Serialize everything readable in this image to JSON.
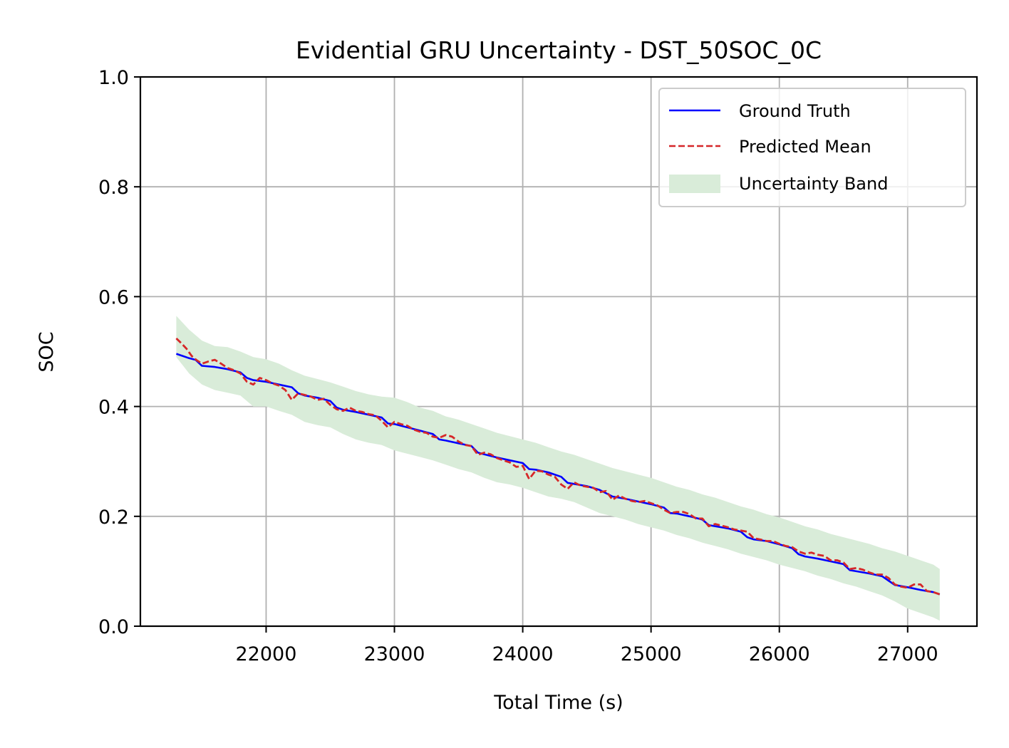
{
  "chart_data": {
    "type": "line",
    "title": "Evidential GRU Uncertainty - DST_50SOC_0C",
    "xlabel": "Total Time (s)",
    "ylabel": "SOC",
    "xlim": [
      21020,
      27540
    ],
    "ylim": [
      0.0,
      1.0
    ],
    "xticks": [
      22000,
      23000,
      24000,
      25000,
      26000,
      27000
    ],
    "yticks": [
      0.0,
      0.2,
      0.4,
      0.6,
      0.8,
      1.0
    ],
    "xtick_labels": [
      "22000",
      "23000",
      "24000",
      "25000",
      "26000",
      "27000"
    ],
    "ytick_labels": [
      "0.0",
      "0.2",
      "0.4",
      "0.6",
      "0.8",
      "1.0"
    ],
    "grid": true,
    "legend_position": "top-right",
    "colors": {
      "ground_truth": "#0000ff",
      "predicted_mean": "#d62728",
      "uncertainty_band": "#d9ecd9",
      "grid": "#b0b0b0"
    },
    "series": [
      {
        "name": "Ground Truth",
        "style": "solid",
        "x": [
          21300,
          21400,
          21450,
          21500,
          21600,
          21700,
          21800,
          21850,
          21900,
          22000,
          22100,
          22200,
          22250,
          22300,
          22400,
          22500,
          22550,
          22600,
          22700,
          22800,
          22900,
          22950,
          23000,
          23100,
          23200,
          23300,
          23350,
          23400,
          23500,
          23600,
          23650,
          23700,
          23800,
          23900,
          24000,
          24050,
          24100,
          24200,
          24300,
          24350,
          24400,
          24500,
          24600,
          24650,
          24700,
          24800,
          24900,
          25000,
          25100,
          25150,
          25200,
          25300,
          25400,
          25450,
          25500,
          25600,
          25700,
          25750,
          25800,
          25900,
          26000,
          26100,
          26150,
          26200,
          26300,
          26400,
          26500,
          26550,
          26600,
          26700,
          26800,
          26850,
          26900,
          27000,
          27100,
          27200,
          27250
        ],
        "y": [
          0.496,
          0.488,
          0.485,
          0.474,
          0.472,
          0.468,
          0.462,
          0.452,
          0.448,
          0.445,
          0.44,
          0.435,
          0.424,
          0.42,
          0.416,
          0.41,
          0.398,
          0.394,
          0.39,
          0.385,
          0.38,
          0.369,
          0.368,
          0.362,
          0.356,
          0.35,
          0.34,
          0.338,
          0.333,
          0.328,
          0.316,
          0.313,
          0.307,
          0.302,
          0.297,
          0.286,
          0.285,
          0.28,
          0.272,
          0.261,
          0.259,
          0.255,
          0.248,
          0.242,
          0.236,
          0.232,
          0.227,
          0.222,
          0.216,
          0.206,
          0.205,
          0.2,
          0.194,
          0.184,
          0.182,
          0.178,
          0.172,
          0.162,
          0.158,
          0.155,
          0.149,
          0.142,
          0.131,
          0.127,
          0.123,
          0.118,
          0.113,
          0.102,
          0.1,
          0.096,
          0.091,
          0.083,
          0.075,
          0.071,
          0.066,
          0.062,
          0.058
        ]
      },
      {
        "name": "Predicted Mean",
        "style": "dashed",
        "x": [
          21300,
          21340,
          21380,
          21420,
          21460,
          21500,
          21550,
          21600,
          21650,
          21700,
          21750,
          21800,
          21850,
          21900,
          21950,
          22000,
          22050,
          22100,
          22150,
          22200,
          22250,
          22300,
          22350,
          22400,
          22450,
          22500,
          22550,
          22600,
          22650,
          22700,
          22750,
          22800,
          22850,
          22900,
          22950,
          23000,
          23050,
          23100,
          23150,
          23200,
          23250,
          23300,
          23350,
          23400,
          23450,
          23500,
          23550,
          23600,
          23650,
          23700,
          23750,
          23800,
          23850,
          23900,
          23950,
          24000,
          24050,
          24100,
          24150,
          24200,
          24250,
          24300,
          24350,
          24400,
          24450,
          24500,
          24550,
          24600,
          24650,
          24700,
          24750,
          24800,
          24850,
          24900,
          24950,
          25000,
          25050,
          25100,
          25150,
          25200,
          25250,
          25300,
          25350,
          25400,
          25450,
          25500,
          25550,
          25600,
          25650,
          25700,
          25750,
          25800,
          25850,
          25900,
          25950,
          26000,
          26050,
          26100,
          26150,
          26200,
          26250,
          26300,
          26350,
          26400,
          26450,
          26500,
          26550,
          26600,
          26650,
          26700,
          26750,
          26800,
          26850,
          26900,
          26950,
          27000,
          27050,
          27100,
          27150,
          27200,
          27250
        ],
        "y": [
          0.524,
          0.515,
          0.505,
          0.492,
          0.484,
          0.478,
          0.482,
          0.485,
          0.478,
          0.47,
          0.466,
          0.46,
          0.445,
          0.44,
          0.452,
          0.448,
          0.442,
          0.438,
          0.43,
          0.412,
          0.424,
          0.421,
          0.418,
          0.412,
          0.414,
          0.403,
          0.395,
          0.392,
          0.398,
          0.392,
          0.39,
          0.386,
          0.384,
          0.374,
          0.362,
          0.372,
          0.368,
          0.365,
          0.358,
          0.354,
          0.352,
          0.345,
          0.343,
          0.348,
          0.345,
          0.336,
          0.33,
          0.328,
          0.312,
          0.316,
          0.313,
          0.306,
          0.302,
          0.298,
          0.29,
          0.292,
          0.268,
          0.283,
          0.282,
          0.276,
          0.272,
          0.258,
          0.25,
          0.262,
          0.256,
          0.254,
          0.252,
          0.244,
          0.246,
          0.23,
          0.238,
          0.232,
          0.228,
          0.226,
          0.228,
          0.224,
          0.22,
          0.212,
          0.206,
          0.208,
          0.208,
          0.204,
          0.196,
          0.196,
          0.182,
          0.186,
          0.183,
          0.18,
          0.176,
          0.174,
          0.172,
          0.16,
          0.158,
          0.155,
          0.155,
          0.15,
          0.146,
          0.144,
          0.136,
          0.132,
          0.134,
          0.13,
          0.128,
          0.12,
          0.12,
          0.116,
          0.104,
          0.106,
          0.103,
          0.098,
          0.094,
          0.094,
          0.088,
          0.076,
          0.072,
          0.07,
          0.076,
          0.076,
          0.064,
          0.062,
          0.058
        ]
      },
      {
        "name": "Uncertainty Band",
        "style": "fill",
        "x": [
          21300,
          21400,
          21500,
          21600,
          21700,
          21800,
          21900,
          22000,
          22100,
          22200,
          22300,
          22400,
          22500,
          22600,
          22700,
          22800,
          22900,
          23000,
          23100,
          23200,
          23300,
          23400,
          23500,
          23600,
          23700,
          23800,
          23900,
          24000,
          24100,
          24200,
          24300,
          24400,
          24500,
          24600,
          24700,
          24800,
          24900,
          25000,
          25100,
          25200,
          25300,
          25400,
          25500,
          25600,
          25700,
          25800,
          25900,
          26000,
          26100,
          26200,
          26300,
          26400,
          26500,
          26600,
          26700,
          26800,
          26900,
          27000,
          27100,
          27200,
          27250
        ],
        "lower": [
          0.49,
          0.46,
          0.44,
          0.43,
          0.425,
          0.42,
          0.4,
          0.4,
          0.392,
          0.385,
          0.372,
          0.366,
          0.362,
          0.35,
          0.34,
          0.334,
          0.33,
          0.32,
          0.314,
          0.308,
          0.302,
          0.294,
          0.286,
          0.28,
          0.27,
          0.262,
          0.258,
          0.252,
          0.244,
          0.236,
          0.232,
          0.226,
          0.216,
          0.206,
          0.2,
          0.194,
          0.186,
          0.18,
          0.174,
          0.166,
          0.16,
          0.152,
          0.146,
          0.14,
          0.132,
          0.126,
          0.12,
          0.112,
          0.106,
          0.1,
          0.092,
          0.086,
          0.078,
          0.072,
          0.064,
          0.056,
          0.045,
          0.032,
          0.024,
          0.016,
          0.01
        ],
        "upper": [
          0.565,
          0.54,
          0.52,
          0.51,
          0.508,
          0.5,
          0.49,
          0.486,
          0.478,
          0.466,
          0.456,
          0.45,
          0.444,
          0.436,
          0.428,
          0.422,
          0.418,
          0.416,
          0.408,
          0.398,
          0.392,
          0.382,
          0.376,
          0.368,
          0.36,
          0.352,
          0.346,
          0.34,
          0.334,
          0.326,
          0.318,
          0.312,
          0.304,
          0.296,
          0.288,
          0.282,
          0.276,
          0.27,
          0.262,
          0.254,
          0.248,
          0.24,
          0.234,
          0.226,
          0.218,
          0.212,
          0.204,
          0.198,
          0.19,
          0.182,
          0.176,
          0.168,
          0.162,
          0.156,
          0.15,
          0.142,
          0.136,
          0.128,
          0.12,
          0.112,
          0.104
        ]
      }
    ]
  }
}
